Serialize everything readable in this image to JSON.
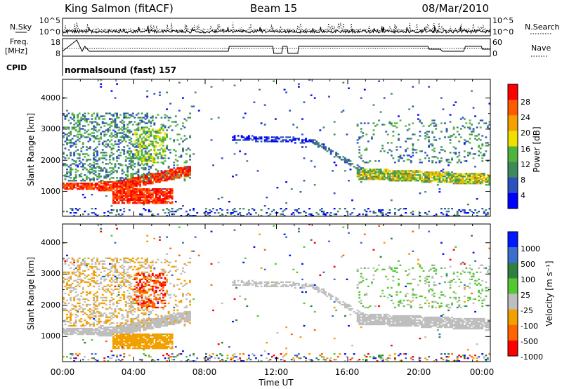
{
  "header": {
    "station": "King Salmon (fitACF)",
    "beam": "Beam 15",
    "date": "08/Mar/2010"
  },
  "left_labels": {
    "nsky": "N.Sky",
    "freq_line1": "Freq.",
    "freq_line2": "[MHz]",
    "cpid": "CPID"
  },
  "right_labels": {
    "nsearch": "N.Search",
    "nave": "Nave"
  },
  "cpid_text": "normalsound (fast) 157",
  "colors": {
    "power": [
      "#0000ff",
      "#2b50bf",
      "#3f8a5a",
      "#4fb43c",
      "#f0e000",
      "#f5a000",
      "#ff5a00",
      "#ff0000"
    ],
    "velocity": [
      "#0018ff",
      "#3a6fd0",
      "#2f7f3f",
      "#54c832",
      "#c8c8c8",
      "#f2a000",
      "#ff6400",
      "#ff0000"
    ],
    "grey": "#bebebe"
  },
  "chart_data": [
    {
      "type": "line",
      "title": "",
      "ylabel": "",
      "yticks": [
        "10^5",
        "10^0"
      ],
      "yticks_right": [
        "10^5",
        "10^0"
      ],
      "series": [
        {
          "name": "N.Sky",
          "style": "solid"
        },
        {
          "name": "N.Search",
          "style": "dotted"
        }
      ]
    },
    {
      "type": "line",
      "yticks": [
        "18",
        "8"
      ],
      "yticks_right": [
        "60",
        "0"
      ],
      "series": [
        {
          "name": "Freq.",
          "style": "dotted"
        },
        {
          "name": "Nave",
          "style": "solid"
        }
      ]
    },
    {
      "type": "heatmap",
      "ylabel": "Slant Range [km]",
      "yticks": [
        "1000",
        "2000",
        "3000",
        "4000"
      ],
      "ylim": [
        200,
        4600
      ],
      "xlim": [
        0,
        24
      ],
      "colorbar": {
        "label": "Power [dB]",
        "ticks": [
          "4",
          "8",
          "12",
          "16",
          "20",
          "24",
          "28"
        ]
      }
    },
    {
      "type": "heatmap",
      "ylabel": "Slant Range [km]",
      "yticks": [
        "1000",
        "2000",
        "3000",
        "4000"
      ],
      "ylim": [
        200,
        4600
      ],
      "xlim": [
        0,
        24
      ],
      "colorbar": {
        "label": "Velocity [m s⁻¹]",
        "ticks": [
          "1000",
          "500",
          "100",
          "25",
          "-25",
          "-100",
          "-500",
          "-1000"
        ]
      }
    }
  ],
  "xaxis": {
    "label": "Time UT",
    "ticks": [
      "00:00",
      "04:00",
      "08:00",
      "12:00",
      "16:00",
      "20:00",
      "00:00"
    ]
  }
}
